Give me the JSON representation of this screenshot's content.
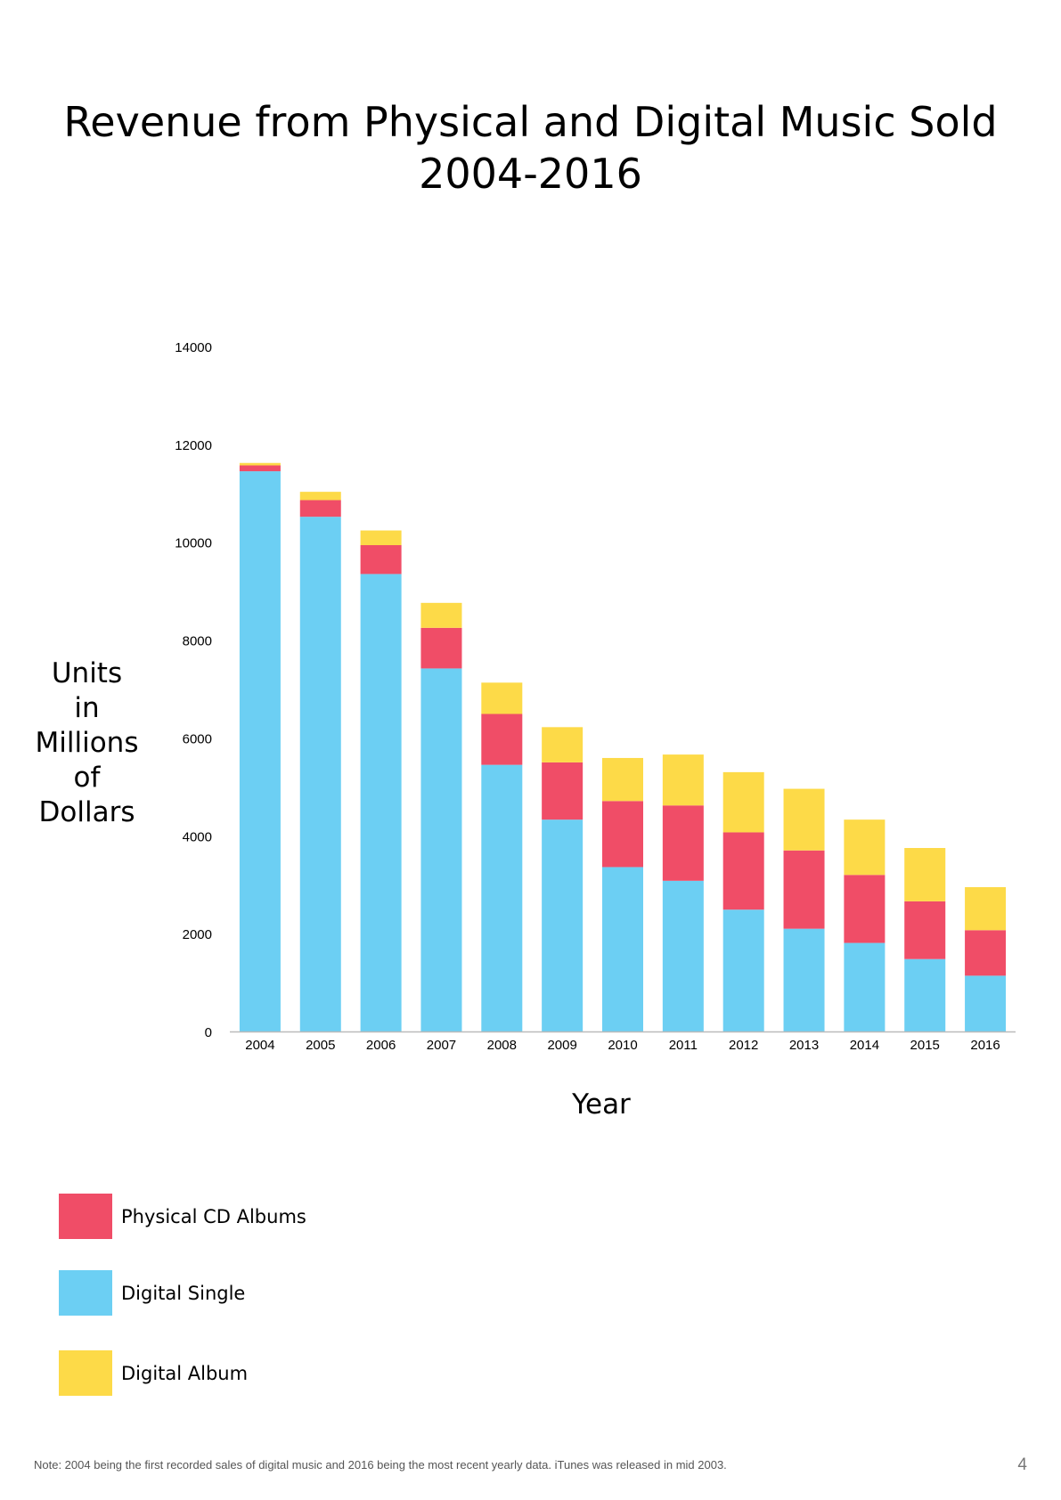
{
  "title": {
    "line1": "Revenue from Physical and Digital Music Sold",
    "line2": "2004-2016"
  },
  "ylabel_lines": [
    "Units",
    "in",
    "Millions",
    "of",
    "Dollars"
  ],
  "legend": {
    "physical_cd": "Physical CD Albums",
    "digital_single": "Digital Single",
    "digital_album": "Digital Album"
  },
  "footnote": "Note: 2004 being the first recorded sales of digital music and 2016 being the most recent yearly data. iTunes was released in mid 2003.",
  "page_number": "4",
  "colors": {
    "digital_single": "#6CCFF3",
    "physical_cd": "#F04D67",
    "digital_album": "#FDDA48",
    "axis": "#bbbbbb"
  },
  "chart_data": {
    "type": "bar",
    "stacked": true,
    "title": "Revenue from Physical and Digital Music Sold 2004-2016",
    "xlabel": "Year",
    "ylabel": "Units in Millions of Dollars",
    "ylim": [
      0,
      14000
    ],
    "yticks": [
      0,
      2000,
      4000,
      6000,
      8000,
      10000,
      12000,
      14000
    ],
    "grid": false,
    "legend_position": "bottom-left",
    "categories": [
      "2004",
      "2005",
      "2006",
      "2007",
      "2008",
      "2009",
      "2010",
      "2011",
      "2012",
      "2013",
      "2014",
      "2015",
      "2016"
    ],
    "series": [
      {
        "name": "Digital Single",
        "color": "#6CCFF3",
        "values": [
          11450,
          10520,
          9350,
          7420,
          5450,
          4330,
          3360,
          3080,
          2490,
          2100,
          1810,
          1480,
          1140
        ]
      },
      {
        "name": "Physical CD Albums",
        "color": "#F04D67",
        "values": [
          120,
          340,
          590,
          830,
          1040,
          1170,
          1350,
          1540,
          1580,
          1600,
          1390,
          1180,
          930
        ]
      },
      {
        "name": "Digital Album",
        "color": "#FDDA48",
        "values": [
          50,
          170,
          300,
          510,
          640,
          720,
          880,
          1040,
          1230,
          1260,
          1130,
          1090,
          880
        ]
      }
    ]
  }
}
